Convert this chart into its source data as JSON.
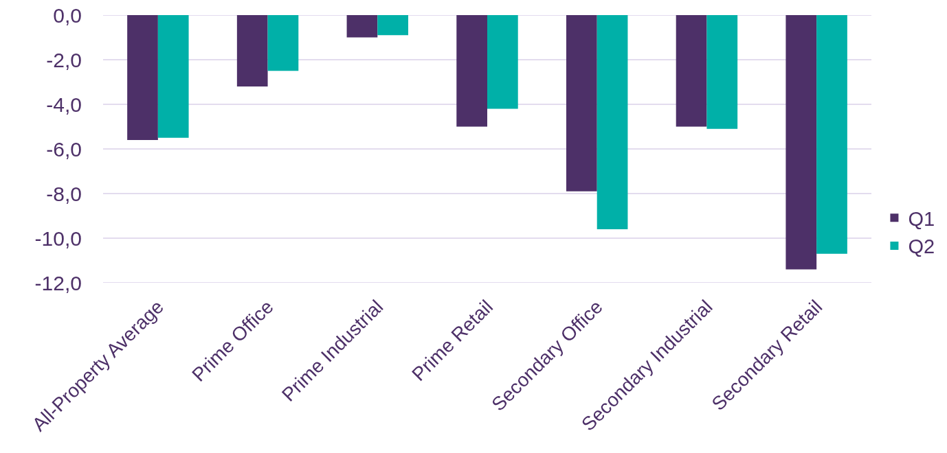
{
  "chart_data": {
    "type": "bar",
    "categories": [
      "All-Property Average",
      "Prime Office",
      "Prime Industrial",
      "Prime Retail",
      "Secondary Office",
      "Secondary Industrial",
      "Secondary Retail"
    ],
    "series": [
      {
        "name": "Q1",
        "color": "#4d3068",
        "values": [
          -5.6,
          -3.2,
          -1.0,
          -5.0,
          -7.9,
          -5.0,
          -11.4
        ]
      },
      {
        "name": "Q2",
        "color": "#00b0a8",
        "values": [
          -5.5,
          -2.5,
          -0.9,
          -4.2,
          -9.6,
          -5.1,
          -10.7
        ]
      }
    ],
    "ylim": [
      -12,
      0
    ],
    "yticks": [
      {
        "value": 0,
        "label": "0,0"
      },
      {
        "value": -2,
        "label": "-2,0"
      },
      {
        "value": -4,
        "label": "-4,0"
      },
      {
        "value": -6,
        "label": "-6,0"
      },
      {
        "value": -8,
        "label": "-8,0"
      },
      {
        "value": -10,
        "label": "-10,0"
      },
      {
        "value": -12,
        "label": "-12,0"
      }
    ],
    "grid": "y",
    "legend": "right"
  }
}
